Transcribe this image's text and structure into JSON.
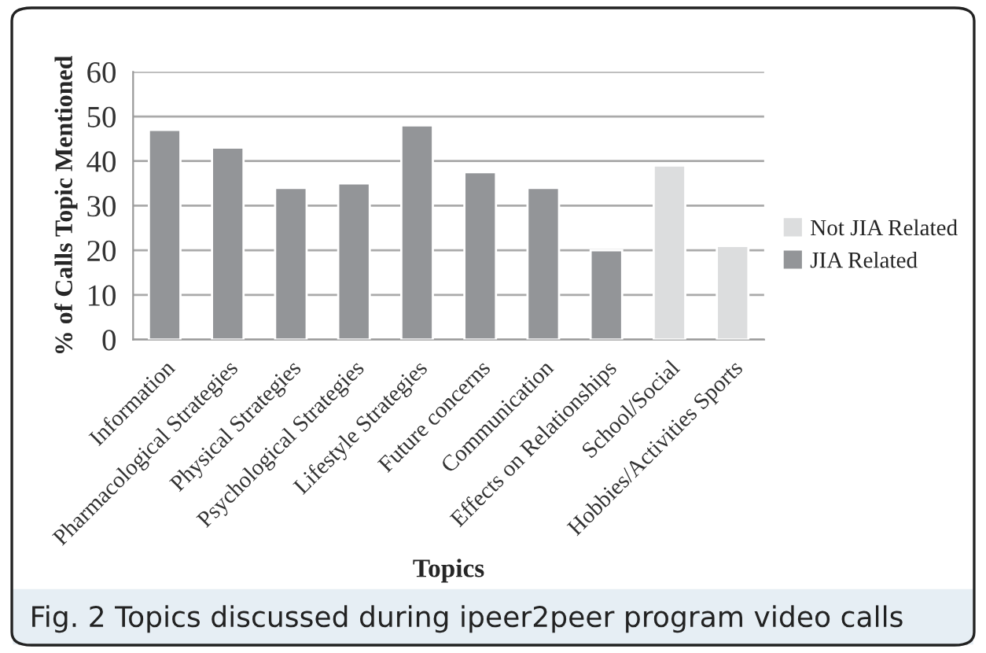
{
  "chart_data": {
    "type": "bar",
    "xlabel": "Topics",
    "ylabel": "% of Calls Topic Mentioned",
    "categories": [
      "Information",
      "Pharmacological Strategies",
      "Physical Strategies",
      "Psychological Strategies",
      "Lifestyle Strategies",
      "Future concerns",
      "Communication",
      "Effects on Relationships",
      "School/Social",
      "Hobbies/Activities Sports"
    ],
    "series": [
      {
        "name": "Not JIA Related",
        "color": "#dcddde",
        "values": [
          null,
          null,
          null,
          null,
          null,
          null,
          null,
          null,
          39,
          21
        ]
      },
      {
        "name": "JIA Related",
        "color": "#939598",
        "values": [
          47,
          43,
          34,
          35,
          48,
          37.5,
          34,
          20,
          null,
          null
        ]
      }
    ],
    "ylim": [
      0,
      60
    ],
    "yticks": [
      0,
      10,
      20,
      30,
      40,
      50,
      60
    ],
    "grid": "y",
    "legend": "right",
    "annotations": [
      "Fig. 2 Topics discussed during ipeer2peer program video calls"
    ]
  }
}
